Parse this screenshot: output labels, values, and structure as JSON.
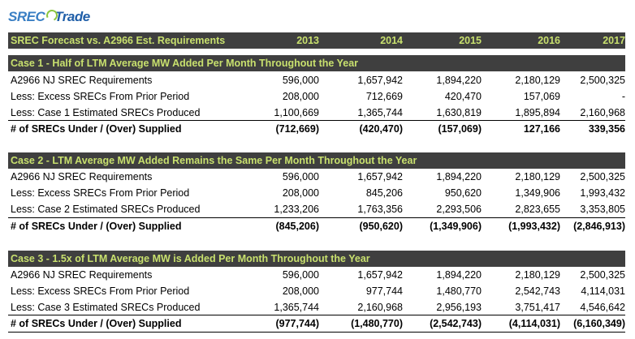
{
  "logo": {
    "part1": "SREC",
    "part2": "Trade"
  },
  "header": {
    "title": "SREC Forecast vs. A2966 Est. Requirements",
    "years": [
      "2013",
      "2014",
      "2015",
      "2016",
      "2017"
    ]
  },
  "cases": [
    {
      "title": "Case 1 - Half of LTM Average MW Added Per Month Throughout the Year",
      "rows": [
        {
          "label": "A2966 NJ SREC Requirements",
          "values": [
            "596,000",
            "1,657,942",
            "1,894,220",
            "2,180,129",
            "2,500,325"
          ]
        },
        {
          "label": "Less: Excess SRECs From Prior Period",
          "values": [
            "208,000",
            "712,669",
            "420,470",
            "157,069",
            "-"
          ]
        },
        {
          "label": "Less: Case 1 Estimated SRECs Produced",
          "values": [
            "1,100,669",
            "1,365,744",
            "1,630,819",
            "1,895,894",
            "2,160,968"
          ]
        }
      ],
      "total": {
        "label": "# of SRECs Under / (Over) Supplied",
        "values": [
          "(712,669)",
          "(420,470)",
          "(157,069)",
          "127,166",
          "339,356"
        ]
      }
    },
    {
      "title": "Case 2 - LTM Average MW Added Remains the Same Per Month Throughout the Year",
      "rows": [
        {
          "label": "A2966 NJ SREC Requirements",
          "values": [
            "596,000",
            "1,657,942",
            "1,894,220",
            "2,180,129",
            "2,500,325"
          ]
        },
        {
          "label": "Less: Excess SRECs From Prior Period",
          "values": [
            "208,000",
            "845,206",
            "950,620",
            "1,349,906",
            "1,993,432"
          ]
        },
        {
          "label": "Less: Case 2 Estimated SRECs Produced",
          "values": [
            "1,233,206",
            "1,763,356",
            "2,293,506",
            "2,823,655",
            "3,353,805"
          ]
        }
      ],
      "total": {
        "label": "# of SRECs Under / (Over) Supplied",
        "values": [
          "(845,206)",
          "(950,620)",
          "(1,349,906)",
          "(1,993,432)",
          "(2,846,913)"
        ]
      }
    },
    {
      "title": "Case 3 - 1.5x of LTM Average MW is Added Per Month Throughout the Year",
      "rows": [
        {
          "label": "A2966 NJ SREC Requirements",
          "values": [
            "596,000",
            "1,657,942",
            "1,894,220",
            "2,180,129",
            "2,500,325"
          ]
        },
        {
          "label": "Less: Excess SRECs From Prior Period",
          "values": [
            "208,000",
            "977,744",
            "1,480,770",
            "2,542,743",
            "4,114,031"
          ]
        },
        {
          "label": "Less: Case 3 Estimated SRECs Produced",
          "values": [
            "1,365,744",
            "2,160,968",
            "2,956,193",
            "3,751,417",
            "4,546,642"
          ]
        }
      ],
      "total": {
        "label": "# of SRECs Under / (Over) Supplied",
        "values": [
          "(977,744)",
          "(1,480,770)",
          "(2,542,743)",
          "(4,114,031)",
          "(6,160,349)"
        ]
      }
    }
  ]
}
